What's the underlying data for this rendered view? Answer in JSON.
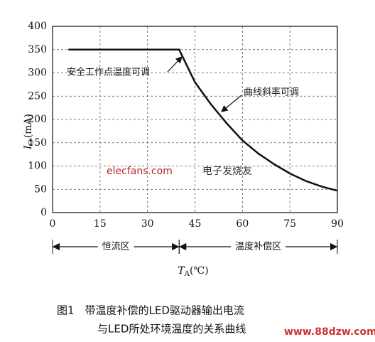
{
  "chart_data": {
    "type": "line",
    "x": [
      5,
      40,
      45,
      50,
      55,
      60,
      65,
      70,
      75,
      80,
      85,
      90
    ],
    "series": [
      {
        "name": "Io",
        "color": "#111111",
        "values": [
          350,
          350,
          280,
          233,
          192,
          155,
          127,
          104,
          84,
          68,
          56,
          47
        ]
      }
    ],
    "xlim": [
      0,
      90
    ],
    "xticks": [
      0,
      15,
      30,
      45,
      60,
      75,
      90
    ],
    "ylim": [
      0,
      400
    ],
    "yticks": [
      0,
      50,
      100,
      150,
      200,
      250,
      300,
      350,
      400
    ],
    "grid": true,
    "y_label": {
      "symbol": "I",
      "subscript": "O",
      "unit": "(mA)"
    },
    "x_label": {
      "symbol": "T",
      "subscript": "A",
      "unit": "(℃)"
    },
    "annotations": [
      "安全工作点温度可调",
      "曲线斜率可调"
    ],
    "regions": [
      {
        "label": "恒流区",
        "from": 0,
        "to": 40
      },
      {
        "label": "温度补偿区",
        "from": 40,
        "to": 90
      }
    ],
    "caption": [
      "图1　带温度补偿的LED驱动器输出电流",
      "与LED所处环境温度的关系曲线"
    ],
    "watermarks": [
      "elecfans.com",
      "电子发烧友",
      "www.88dzw.com"
    ]
  }
}
